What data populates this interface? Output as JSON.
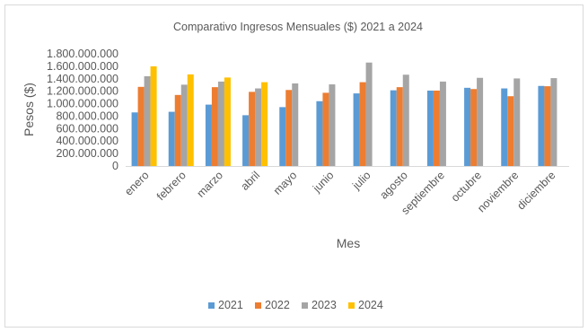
{
  "chart_data": {
    "type": "bar",
    "title": "Comparativo  Ingresos Mensuales  ($) 2021 a 2024",
    "xlabel": "Mes",
    "ylabel": "Pesos ($)",
    "ylim": [
      0,
      1800000
    ],
    "yticks": [
      "0",
      "200.000.000",
      "400.000.000",
      "600.000.000",
      "800.000.000",
      "1.000.000.000",
      "1.200.000.000",
      "1.400.000.000",
      "1.600.000.000",
      "1.800.000.000"
    ],
    "ytick_values": [
      0,
      200000,
      400000,
      600000,
      800000,
      1000000,
      1200000,
      1400000,
      1600000,
      1800000
    ],
    "grid": false,
    "legend_position": "bottom",
    "categories": [
      "enero",
      "febrero",
      "marzo",
      "abril",
      "mayo",
      "junio",
      "julio",
      "agosto",
      "septiembre",
      "octubre",
      "noviembre",
      "diciembre"
    ],
    "series": [
      {
        "name": "2021",
        "color": "#5b9bd5",
        "values": [
          860000,
          870000,
          985000,
          815000,
          945000,
          1040000,
          1165000,
          1215000,
          1210000,
          1255000,
          1245000,
          1285000
        ]
      },
      {
        "name": "2022",
        "color": "#ed7d31",
        "values": [
          1270000,
          1140000,
          1265000,
          1190000,
          1220000,
          1175000,
          1345000,
          1265000,
          1210000,
          1235000,
          1120000,
          1280000
        ]
      },
      {
        "name": "2023",
        "color": "#a5a5a5",
        "values": [
          1440000,
          1305000,
          1355000,
          1245000,
          1325000,
          1310000,
          1660000,
          1465000,
          1355000,
          1415000,
          1405000,
          1410000
        ]
      },
      {
        "name": "2024",
        "color": "#ffc000",
        "values": [
          1600000,
          1470000,
          1420000,
          1345000,
          null,
          null,
          null,
          null,
          null,
          null,
          null,
          null
        ]
      }
    ]
  }
}
